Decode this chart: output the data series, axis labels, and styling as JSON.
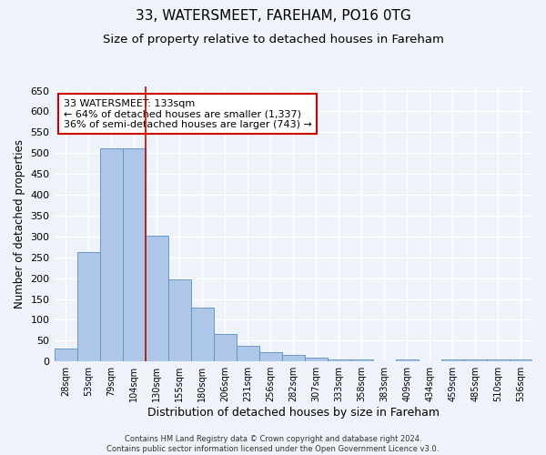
{
  "title1": "33, WATERSMEET, FAREHAM, PO16 0TG",
  "title2": "Size of property relative to detached houses in Fareham",
  "xlabel": "Distribution of detached houses by size in Fareham",
  "ylabel": "Number of detached properties",
  "categories": [
    "28sqm",
    "53sqm",
    "79sqm",
    "104sqm",
    "130sqm",
    "155sqm",
    "180sqm",
    "206sqm",
    "231sqm",
    "256sqm",
    "282sqm",
    "307sqm",
    "333sqm",
    "358sqm",
    "383sqm",
    "409sqm",
    "434sqm",
    "459sqm",
    "485sqm",
    "510sqm",
    "536sqm"
  ],
  "values": [
    30,
    262,
    512,
    512,
    302,
    197,
    130,
    65,
    38,
    22,
    15,
    10,
    5,
    5,
    0,
    5,
    0,
    5,
    5,
    5,
    5
  ],
  "bar_color": "#aec6e8",
  "bar_edge_color": "#5a8fc2",
  "vline_x": 3.5,
  "vline_color": "#cc0000",
  "annotation_text": "33 WATERSMEET: 133sqm\n← 64% of detached houses are smaller (1,337)\n36% of semi-detached houses are larger (743) →",
  "annotation_box_color": "#ffffff",
  "annotation_box_edge": "#cc0000",
  "ylim": [
    0,
    660
  ],
  "yticks": [
    0,
    50,
    100,
    150,
    200,
    250,
    300,
    350,
    400,
    450,
    500,
    550,
    600,
    650
  ],
  "footer": "Contains HM Land Registry data © Crown copyright and database right 2024.\nContains public sector information licensed under the Open Government Licence v3.0.",
  "bg_color": "#eef2f9",
  "grid_color": "#ffffff",
  "title1_fontsize": 11,
  "title2_fontsize": 9.5,
  "xlabel_fontsize": 9,
  "ylabel_fontsize": 8.5,
  "annotation_fontsize": 8,
  "footer_fontsize": 6
}
